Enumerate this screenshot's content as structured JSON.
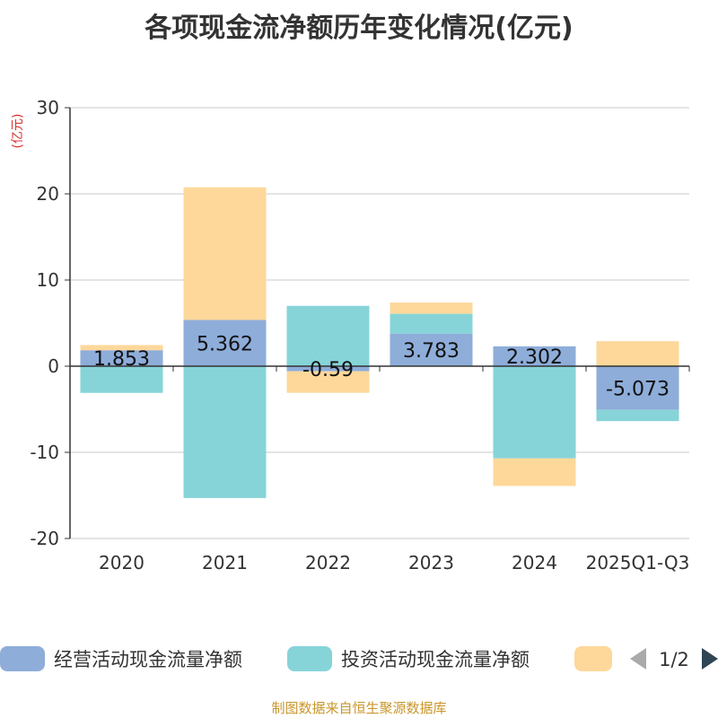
{
  "chart_data": {
    "type": "bar",
    "stacked": true,
    "title": "各项现金流净额历年变化情况(亿元)",
    "ylabel": "(亿元)",
    "xlabel": "",
    "categories": [
      "2020",
      "2021",
      "2022",
      "2023",
      "2024",
      "2025Q1-Q3"
    ],
    "ylim": [
      -20,
      30
    ],
    "yticks": [
      -20,
      -10,
      0,
      10,
      20,
      30
    ],
    "grid": true,
    "series": [
      {
        "name": "经营活动现金流量净额",
        "color": "#8eadd9",
        "values": [
          1.853,
          5.362,
          -0.59,
          3.783,
          2.302,
          -5.073
        ],
        "labels": [
          "1.853",
          "5.362",
          "-0.59",
          "3.783",
          "2.302",
          "-5.073"
        ]
      },
      {
        "name": "投资活动现金流量净额",
        "color": "#86d4d8",
        "values": [
          -3.1,
          -15.3,
          7.0,
          2.3,
          -10.7,
          -1.3
        ]
      },
      {
        "name": "",
        "color": "#fdd89a",
        "values": [
          0.6,
          15.4,
          -2.5,
          1.3,
          -3.2,
          2.9
        ]
      }
    ],
    "legend": {
      "position": "bottom",
      "page": "1/2"
    },
    "source_note": "制图数据来自恒生聚源数据库"
  }
}
